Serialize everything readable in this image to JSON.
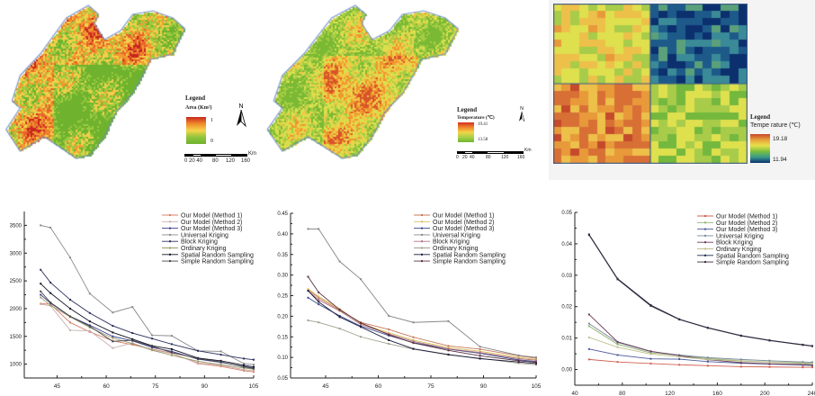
{
  "maps": [
    {
      "id": "area-map",
      "legend_title": "Legend",
      "legend_subtitle": "Area (Km²)",
      "max_label": "1",
      "min_label": "0",
      "ramp_colors": [
        "#c8261e",
        "#f08a2a",
        "#f6d44a",
        "#8fc43c",
        "#6fb22e"
      ],
      "scale_unit": "Km",
      "scale_labels": [
        "0 20 40",
        "80",
        "120",
        "160"
      ],
      "north_label": "N"
    },
    {
      "id": "temperature-map",
      "legend_title": "Legend",
      "legend_subtitle": "Temperature (℃)",
      "max_label": "19.41",
      "min_label": "13.58",
      "ramp_colors": [
        "#d3301f",
        "#f0862c",
        "#f2d548",
        "#a8d048",
        "#70b632"
      ],
      "scale_unit": "Km",
      "scale_labels": [
        "0",
        "20",
        "40",
        "80",
        "120",
        "160"
      ],
      "north_label": "N"
    },
    {
      "id": "grid-temperature-map",
      "legend_title": "Legend",
      "legend_subtitle": "Tempe rature (℃)",
      "max_label": "19.18",
      "min_label": "11.94",
      "ramp_colors": [
        "#c9452c",
        "#e8a23a",
        "#e8e04c",
        "#7cbf3c",
        "#3a9a8a",
        "#0c2f6e"
      ]
    }
  ],
  "chart_data": [
    {
      "type": "line",
      "title": "",
      "xlabel": "",
      "ylabel": "",
      "xlim": [
        35,
        105
      ],
      "ylim": [
        750,
        3750
      ],
      "xticks": [
        45,
        60,
        75,
        90,
        105
      ],
      "yticks": [
        1000,
        1500,
        2000,
        2500,
        3000,
        3500
      ],
      "grid": false,
      "legend": "top-right",
      "x": [
        40,
        43,
        49,
        55,
        62,
        68,
        74,
        80,
        88,
        95,
        102,
        105
      ],
      "series": [
        {
          "name": "Our Model (Method 1)",
          "color": "#d9826a",
          "values": [
            2090,
            2080,
            1750,
            1580,
            1420,
            1350,
            1270,
            1200,
            1010,
            960,
            880,
            860
          ]
        },
        {
          "name": "Our Model (Method 2)",
          "color": "#c9b0b0",
          "values": [
            2080,
            2050,
            1610,
            1600,
            1290,
            1380,
            1260,
            1190,
            1020,
            980,
            900,
            880
          ]
        },
        {
          "name": "Our Model (Method 3)",
          "color": "#3a3f8a",
          "values": [
            2250,
            2100,
            1860,
            1700,
            1500,
            1420,
            1300,
            1230,
            1090,
            1030,
            960,
            930
          ]
        },
        {
          "name": "Universal Kriging",
          "color": "#8a8a8a",
          "values": [
            3500,
            3460,
            2920,
            2270,
            1930,
            2030,
            1520,
            1510,
            1240,
            1230,
            1010,
            990
          ]
        },
        {
          "name": "Block Kriging",
          "color": "#2a2e5a",
          "values": [
            2700,
            2470,
            2160,
            1920,
            1690,
            1560,
            1460,
            1360,
            1240,
            1170,
            1100,
            1080
          ]
        },
        {
          "name": "Ordinary Kriging",
          "color": "#9a9a6a",
          "values": [
            2200,
            2060,
            1850,
            1660,
            1470,
            1370,
            1250,
            1160,
            1050,
            990,
            930,
            910
          ]
        },
        {
          "name": "Spatial Random Sampling",
          "color": "#111122",
          "values": [
            2450,
            2280,
            2000,
            1770,
            1570,
            1450,
            1330,
            1270,
            1110,
            1060,
            980,
            950
          ]
        },
        {
          "name": "Simple Random Sampling",
          "color": "#444444",
          "values": [
            2310,
            2110,
            1860,
            1680,
            1410,
            1430,
            1320,
            1210,
            1100,
            1040,
            950,
            920
          ]
        }
      ]
    },
    {
      "type": "line",
      "title": "",
      "xlabel": "",
      "ylabel": "",
      "xlim": [
        35,
        105
      ],
      "ylim": [
        0.05,
        0.45
      ],
      "xticks": [
        45,
        60,
        75,
        90,
        105
      ],
      "yticks": [
        0.05,
        0.1,
        0.15,
        0.2,
        0.25,
        0.3,
        0.35,
        0.4,
        0.45
      ],
      "grid": false,
      "legend": "top-right",
      "x": [
        40,
        43,
        49,
        55,
        63,
        70,
        80,
        89,
        100,
        105
      ],
      "series": [
        {
          "name": "Our Model (Method 1)",
          "color": "#c87a5a",
          "values": [
            0.265,
            0.245,
            0.215,
            0.185,
            0.168,
            0.149,
            0.128,
            0.12,
            0.104,
            0.098
          ]
        },
        {
          "name": "Our Model (Method 2)",
          "color": "#d8c060",
          "values": [
            0.266,
            0.248,
            0.218,
            0.182,
            0.16,
            0.142,
            0.124,
            0.115,
            0.1,
            0.095
          ]
        },
        {
          "name": "Our Model (Method 3)",
          "color": "#3a4a8a",
          "values": [
            0.245,
            0.229,
            0.201,
            0.176,
            0.153,
            0.136,
            0.12,
            0.11,
            0.094,
            0.09
          ]
        },
        {
          "name": "Universal Kriging",
          "color": "#888888",
          "values": [
            0.412,
            0.412,
            0.333,
            0.29,
            0.201,
            0.185,
            0.188,
            0.126,
            0.105,
            0.1
          ]
        },
        {
          "name": "Block Kriging",
          "color": "#b07080",
          "values": [
            0.262,
            0.24,
            0.213,
            0.18,
            0.157,
            0.139,
            0.121,
            0.112,
            0.097,
            0.093
          ]
        },
        {
          "name": "Ordinary Kriging",
          "color": "#a0a090",
          "values": [
            0.19,
            0.185,
            0.17,
            0.15,
            0.133,
            0.12,
            0.106,
            0.098,
            0.086,
            0.082
          ]
        },
        {
          "name": "Spatial Random Sampling",
          "color": "#1a1a3a",
          "values": [
            0.262,
            0.235,
            0.198,
            0.174,
            0.142,
            0.121,
            0.107,
            0.097,
            0.089,
            0.085
          ]
        },
        {
          "name": "Simple Random Sampling",
          "color": "#5a3040",
          "values": [
            0.296,
            0.258,
            0.216,
            0.184,
            0.155,
            0.135,
            0.117,
            0.104,
            0.092,
            0.088
          ]
        }
      ]
    },
    {
      "type": "line",
      "title": "",
      "xlabel": "",
      "ylabel": "",
      "xlim": [
        40,
        240
      ],
      "ylim": [
        -0.005,
        0.05
      ],
      "xticks": [
        40,
        80,
        120,
        160,
        200,
        240
      ],
      "yticks": [
        0.0,
        0.01,
        0.02,
        0.03,
        0.04,
        0.05
      ],
      "grid": false,
      "legend": "top-right",
      "x": [
        52,
        76,
        104,
        128,
        152,
        180,
        204,
        232,
        240
      ],
      "series": [
        {
          "name": "Our Model (Method 1)",
          "color": "#d06050",
          "values": [
            0.0032,
            0.0024,
            0.0019,
            0.0015,
            0.0012,
            0.0009,
            0.0008,
            0.0007,
            0.0007
          ]
        },
        {
          "name": "Our Model (Method 2)",
          "color": "#90b070",
          "values": [
            0.0138,
            0.008,
            0.0053,
            0.0045,
            0.0035,
            0.0028,
            0.0024,
            0.0021,
            0.002
          ]
        },
        {
          "name": "Our Model (Method 3)",
          "color": "#4a5a9a",
          "values": [
            0.0065,
            0.0046,
            0.0034,
            0.0033,
            0.0025,
            0.002,
            0.0017,
            0.0014,
            0.0013
          ]
        },
        {
          "name": "Universal Kriging",
          "color": "#7a8a9a",
          "values": [
            0.0146,
            0.0086,
            0.0057,
            0.0046,
            0.0038,
            0.0032,
            0.0028,
            0.0024,
            0.0023
          ]
        },
        {
          "name": "Block Kriging",
          "color": "#6a3a5a",
          "values": [
            0.0175,
            0.0088,
            0.0058,
            0.0044,
            0.0031,
            0.0022,
            0.0018,
            0.0016,
            0.0015
          ]
        },
        {
          "name": "Ordinary Kriging",
          "color": "#c0c090",
          "values": [
            0.0102,
            0.0071,
            0.0049,
            0.004,
            0.0032,
            0.0027,
            0.0023,
            0.0019,
            0.0018
          ]
        },
        {
          "name": "Spatial Random Sampling",
          "color": "#1a2a4a",
          "values": [
            0.043,
            0.0289,
            0.0205,
            0.016,
            0.0133,
            0.0108,
            0.0093,
            0.0079,
            0.0075
          ]
        },
        {
          "name": "Simple Random Sampling",
          "color": "#3a2a3a",
          "values": [
            0.0428,
            0.0287,
            0.0202,
            0.0159,
            0.0132,
            0.0107,
            0.0092,
            0.0078,
            0.0074
          ]
        }
      ]
    }
  ]
}
